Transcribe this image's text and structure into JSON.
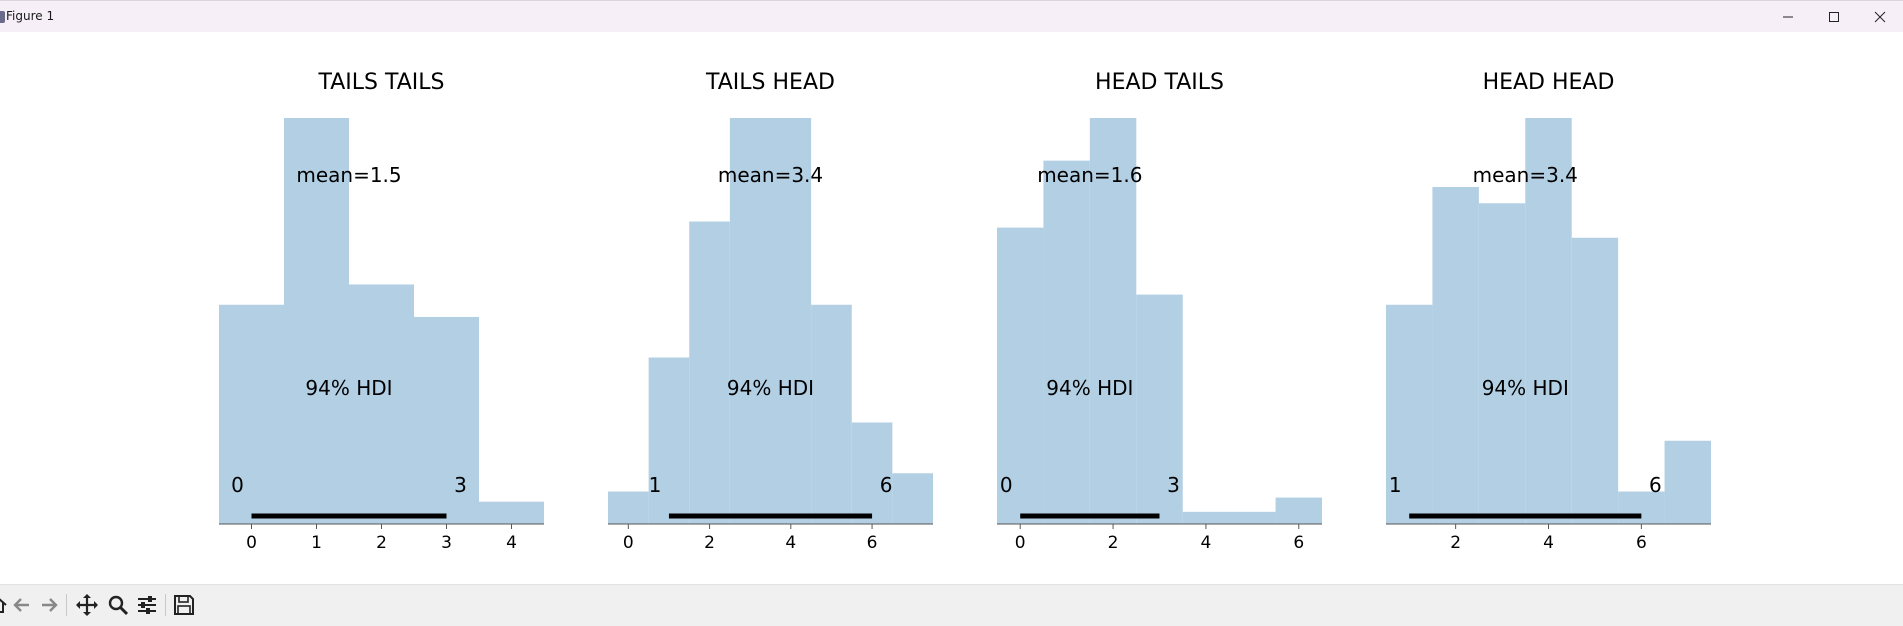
{
  "window": {
    "title": "Figure 1",
    "controls": [
      "minimize-icon",
      "maximize-icon",
      "close-icon"
    ]
  },
  "toolbar": {
    "items": [
      "home-icon",
      "back-arrow-icon",
      "forward-arrow-icon",
      "pan-icon",
      "zoom-icon",
      "configure-subplots-icon",
      "save-icon"
    ]
  },
  "colors": {
    "hist_fill": "#b2cfe4",
    "hdi_line": "#000000",
    "text": "#000000",
    "axis": "#555555"
  },
  "chart_data": [
    {
      "type": "bar",
      "title": "TAILS TAILS",
      "mean_label": "mean=1.5",
      "hdi_label": "94% HDI",
      "hdi": [
        0,
        3
      ],
      "hdi_tick_labels": [
        "0",
        "3"
      ],
      "bins": [
        {
          "x0": -0.5,
          "x1": 0.5,
          "height": 0.54
        },
        {
          "x0": 0.5,
          "x1": 1.5,
          "height": 1.0
        },
        {
          "x0": 1.5,
          "x1": 2.5,
          "height": 0.59
        },
        {
          "x0": 2.5,
          "x1": 3.5,
          "height": 0.51
        },
        {
          "x0": 3.5,
          "x1": 4.5,
          "height": 0.055
        }
      ],
      "xlim": [
        -0.5,
        4.5
      ],
      "xticks": [
        0,
        1,
        2,
        3,
        4
      ]
    },
    {
      "type": "bar",
      "title": "TAILS HEAD",
      "mean_label": "mean=3.4",
      "hdi_label": "94% HDI",
      "hdi": [
        1,
        6
      ],
      "hdi_tick_labels": [
        "1",
        "6"
      ],
      "bins": [
        {
          "x0": -0.5,
          "x1": 0.5,
          "height": 0.08
        },
        {
          "x0": 0.5,
          "x1": 1.5,
          "height": 0.41
        },
        {
          "x0": 1.5,
          "x1": 2.5,
          "height": 0.745
        },
        {
          "x0": 2.5,
          "x1": 4.5,
          "height": 1.0
        },
        {
          "x0": 4.5,
          "x1": 5.5,
          "height": 0.54
        },
        {
          "x0": 5.5,
          "x1": 6.5,
          "height": 0.25
        },
        {
          "x0": 6.5,
          "x1": 7.5,
          "height": 0.125
        }
      ],
      "xlim": [
        -0.5,
        7.5
      ],
      "xticks": [
        0,
        2,
        4,
        6
      ]
    },
    {
      "type": "bar",
      "title": "HEAD TAILS",
      "mean_label": "mean=1.6",
      "hdi_label": "94% HDI",
      "hdi": [
        0,
        3
      ],
      "hdi_tick_labels": [
        "0",
        "3"
      ],
      "bins": [
        {
          "x0": -0.5,
          "x1": 0.5,
          "height": 0.73
        },
        {
          "x0": 0.5,
          "x1": 1.5,
          "height": 0.895
        },
        {
          "x0": 1.5,
          "x1": 2.5,
          "height": 1.0
        },
        {
          "x0": 2.5,
          "x1": 3.5,
          "height": 0.565
        },
        {
          "x0": 3.5,
          "x1": 5.5,
          "height": 0.03
        },
        {
          "x0": 5.5,
          "x1": 6.5,
          "height": 0.065
        }
      ],
      "xlim": [
        -0.5,
        6.5
      ],
      "xticks": [
        0,
        2,
        4,
        6
      ]
    },
    {
      "type": "bar",
      "title": "HEAD HEAD",
      "mean_label": "mean=3.4",
      "hdi_label": "94% HDI",
      "hdi": [
        1,
        6
      ],
      "hdi_tick_labels": [
        "1",
        "6"
      ],
      "bins": [
        {
          "x0": 0.5,
          "x1": 1.5,
          "height": 0.54
        },
        {
          "x0": 1.5,
          "x1": 2.5,
          "height": 0.83
        },
        {
          "x0": 2.5,
          "x1": 3.5,
          "height": 0.79
        },
        {
          "x0": 3.5,
          "x1": 4.5,
          "height": 1.0
        },
        {
          "x0": 4.5,
          "x1": 5.5,
          "height": 0.705
        },
        {
          "x0": 5.5,
          "x1": 6.5,
          "height": 0.08
        },
        {
          "x0": 6.5,
          "x1": 7.5,
          "height": 0.205
        }
      ],
      "xlim": [
        0.5,
        7.5
      ],
      "xticks": [
        2,
        4,
        6
      ]
    }
  ]
}
